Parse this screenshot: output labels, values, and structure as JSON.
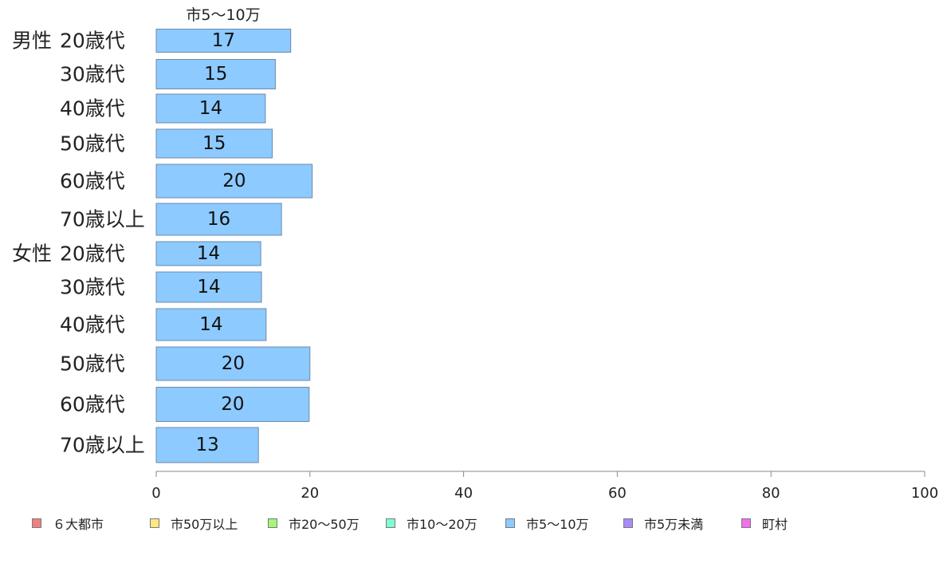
{
  "chart_data": {
    "type": "bar",
    "orientation": "horizontal",
    "title": "市5〜10万",
    "groups": [
      "男性",
      "女性"
    ],
    "categories": [
      {
        "group": "男性",
        "label": "20歳代"
      },
      {
        "group": "",
        "label": "30歳代"
      },
      {
        "group": "",
        "label": "40歳代"
      },
      {
        "group": "",
        "label": "50歳代"
      },
      {
        "group": "",
        "label": "60歳代"
      },
      {
        "group": "",
        "label": "70歳以上"
      },
      {
        "group": "女性",
        "label": "20歳代"
      },
      {
        "group": "",
        "label": "30歳代"
      },
      {
        "group": "",
        "label": "40歳代"
      },
      {
        "group": "",
        "label": "50歳代"
      },
      {
        "group": "",
        "label": "60歳代"
      },
      {
        "group": "",
        "label": "70歳以上"
      }
    ],
    "series": [
      {
        "name": "市5〜10万",
        "color": "#8ccaff",
        "values": [
          17.5,
          15.5,
          14.2,
          15.1,
          20.3,
          16.3,
          13.6,
          13.7,
          14.3,
          20.0,
          19.9,
          13.3
        ]
      }
    ],
    "data_labels": [
      "17",
      "15",
      "14",
      "15",
      "20",
      "16",
      "14",
      "14",
      "14",
      "20",
      "20",
      "13"
    ],
    "xlim": [
      0,
      100
    ],
    "xticks": [
      0,
      20,
      40,
      60,
      80,
      100
    ],
    "grid": false,
    "legend": {
      "position": "bottom",
      "entries": [
        {
          "label": "６大都市",
          "color": "#f08080"
        },
        {
          "label": "市50万以上",
          "color": "#ffe680"
        },
        {
          "label": "市20〜50万",
          "color": "#a6f57a"
        },
        {
          "label": "市10〜20万",
          "color": "#7fffd4"
        },
        {
          "label": "市5〜10万",
          "color": "#8ccaff"
        },
        {
          "label": "市5万未満",
          "color": "#a78bfa"
        },
        {
          "label": "町村",
          "color": "#f070f0"
        }
      ]
    }
  }
}
